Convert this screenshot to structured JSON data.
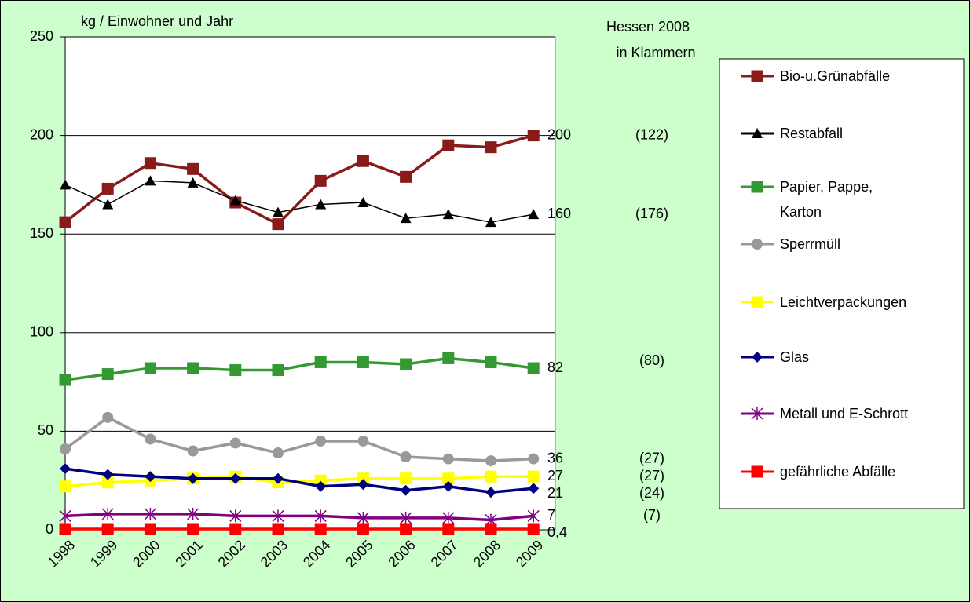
{
  "chart_data": {
    "type": "line",
    "y_axis_label": "kg / Einwohner und Jahr",
    "annotation_title": [
      "Hessen 2008",
      "in Klammern"
    ],
    "categories": [
      "1998",
      "1999",
      "2000",
      "2001",
      "2002",
      "2003",
      "2004",
      "2005",
      "2006",
      "2007",
      "2008",
      "2009"
    ],
    "ylim": [
      0,
      250
    ],
    "yticks": [
      0,
      50,
      100,
      150,
      200,
      250
    ],
    "grid": true,
    "series": [
      {
        "name": "Bio-u.Grünabfälle",
        "color": "#8b1a1a",
        "marker": "square",
        "hessen_2008": "(122)",
        "values": [
          156,
          173,
          186,
          183,
          166,
          155,
          177,
          187,
          179,
          195,
          194,
          200
        ],
        "value_labels": [
          null,
          null,
          null,
          null,
          null,
          null,
          null,
          null,
          null,
          null,
          null,
          "200"
        ]
      },
      {
        "name": "Restabfall",
        "color": "#000000",
        "marker": "triangle",
        "hessen_2008": "(176)",
        "values": [
          175,
          165,
          177,
          176,
          167,
          161,
          165,
          166,
          158,
          160,
          156,
          160
        ],
        "value_labels": [
          null,
          null,
          null,
          null,
          null,
          null,
          null,
          null,
          null,
          null,
          null,
          "160"
        ]
      },
      {
        "name": "Papier, Pappe, Karton",
        "color": "#339933",
        "marker": "square",
        "hessen_2008": "(80)",
        "values": [
          76,
          79,
          82,
          82,
          81,
          81,
          85,
          85,
          84,
          87,
          85,
          82
        ],
        "value_labels": [
          null,
          null,
          null,
          null,
          null,
          null,
          null,
          null,
          null,
          null,
          null,
          "82"
        ]
      },
      {
        "name": "Sperrmüll",
        "color": "#999999",
        "marker": "circle",
        "hessen_2008": "(27)",
        "values": [
          41,
          57,
          46,
          40,
          44,
          39,
          45,
          45,
          37,
          36,
          35,
          36
        ],
        "value_labels": [
          null,
          null,
          null,
          null,
          null,
          null,
          null,
          null,
          null,
          null,
          null,
          "36"
        ]
      },
      {
        "name": "Leichtverpackungen",
        "color": "#ffff00",
        "marker": "square",
        "hessen_2008": "(27)",
        "values": [
          22,
          24,
          25,
          26,
          27,
          24,
          25,
          26,
          26,
          26,
          27,
          27
        ],
        "value_labels": [
          null,
          null,
          null,
          null,
          null,
          null,
          null,
          null,
          null,
          null,
          null,
          "27"
        ]
      },
      {
        "name": "Glas",
        "color": "#000080",
        "marker": "diamond",
        "hessen_2008": "(24)",
        "values": [
          31,
          28,
          27,
          26,
          26,
          26,
          22,
          23,
          20,
          22,
          19,
          21
        ],
        "value_labels": [
          null,
          null,
          null,
          null,
          null,
          null,
          null,
          null,
          null,
          null,
          null,
          "21"
        ]
      },
      {
        "name": "Metall und E-Schrott",
        "color": "#800080",
        "marker": "star",
        "hessen_2008": "(7)",
        "values": [
          7,
          8,
          8,
          8,
          7,
          7,
          7,
          6,
          6,
          6,
          5,
          7
        ],
        "value_labels": [
          null,
          null,
          null,
          null,
          null,
          null,
          null,
          null,
          null,
          null,
          null,
          "7"
        ]
      },
      {
        "name": "gefährliche Abfälle",
        "color": "#ff0000",
        "marker": "square",
        "values": [
          0.4,
          0.4,
          0.4,
          0.4,
          0.4,
          0.4,
          0.4,
          0.4,
          0.4,
          0.4,
          0.4,
          0.4
        ],
        "value_labels": [
          null,
          null,
          null,
          null,
          null,
          null,
          null,
          null,
          null,
          null,
          null,
          "0,4"
        ]
      }
    ]
  }
}
